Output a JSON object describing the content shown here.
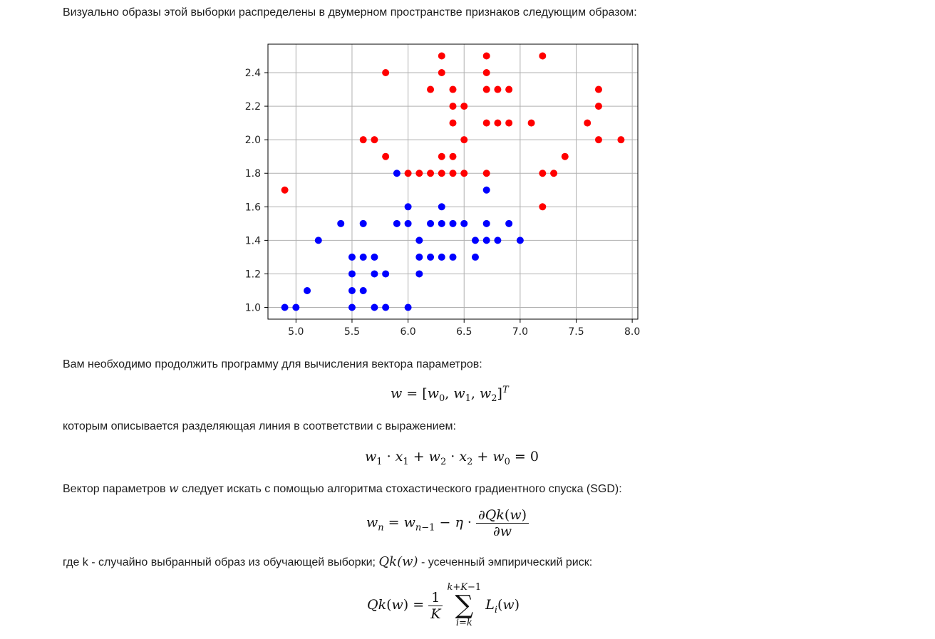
{
  "intro_text": "Визуально образы этой выборки распределены в двумерном пространстве признаков следующим образом:",
  "para2": "Вам необходимо продолжить программу для вычисления вектора параметров:",
  "para3": "которым описывается разделяющая линия в соответствии с выражением:",
  "para4": {
    "before": "Вектор параметров",
    "var": "w",
    "after": "следует искать с помощью алгоритма стохастического градиентного спуска (SGD):"
  },
  "para5": {
    "before": "где k - случайно выбранный образ из обучающей выборки;",
    "expr": "Qk(w)",
    "after": "- усеченный эмпирический риск:"
  },
  "colors": {
    "red": "#ff0000",
    "blue": "#0000ff",
    "grid": "#b0b0b0"
  },
  "chart_data": {
    "type": "scatter",
    "xlim": [
      4.75,
      8.05
    ],
    "ylim": [
      0.93,
      2.57
    ],
    "xticks": [
      5.0,
      5.5,
      6.0,
      6.5,
      7.0,
      7.5,
      8.0
    ],
    "yticks": [
      1.0,
      1.2,
      1.4,
      1.6,
      1.8,
      2.0,
      2.2,
      2.4
    ],
    "xtick_labels": [
      "5.0",
      "5.5",
      "6.0",
      "6.5",
      "7.0",
      "7.5",
      "8.0"
    ],
    "ytick_labels": [
      "1.0",
      "1.2",
      "1.4",
      "1.6",
      "1.8",
      "2.0",
      "2.2",
      "2.4"
    ],
    "grid": true,
    "series": [
      {
        "color": "#ff0000",
        "points": [
          [
            4.9,
            1.7
          ],
          [
            5.6,
            2.0
          ],
          [
            5.7,
            2.0
          ],
          [
            5.8,
            2.4
          ],
          [
            5.8,
            1.9
          ],
          [
            6.0,
            1.8
          ],
          [
            6.1,
            1.8
          ],
          [
            6.2,
            1.8
          ],
          [
            6.2,
            2.3
          ],
          [
            6.3,
            2.5
          ],
          [
            6.3,
            2.4
          ],
          [
            6.3,
            1.9
          ],
          [
            6.3,
            1.8
          ],
          [
            6.4,
            2.3
          ],
          [
            6.4,
            2.2
          ],
          [
            6.4,
            2.1
          ],
          [
            6.4,
            1.9
          ],
          [
            6.4,
            1.8
          ],
          [
            6.5,
            2.2
          ],
          [
            6.5,
            2.0
          ],
          [
            6.5,
            1.8
          ],
          [
            6.7,
            2.5
          ],
          [
            6.7,
            2.4
          ],
          [
            6.7,
            2.3
          ],
          [
            6.7,
            2.1
          ],
          [
            6.7,
            1.8
          ],
          [
            6.8,
            2.3
          ],
          [
            6.8,
            2.1
          ],
          [
            6.9,
            2.3
          ],
          [
            6.9,
            2.1
          ],
          [
            7.1,
            2.1
          ],
          [
            7.2,
            2.5
          ],
          [
            7.2,
            1.8
          ],
          [
            7.2,
            1.6
          ],
          [
            7.3,
            1.8
          ],
          [
            7.4,
            1.9
          ],
          [
            7.6,
            2.1
          ],
          [
            7.7,
            2.3
          ],
          [
            7.7,
            2.2
          ],
          [
            7.7,
            2.0
          ],
          [
            7.9,
            2.0
          ]
        ]
      },
      {
        "color": "#0000ff",
        "points": [
          [
            4.9,
            1.0
          ],
          [
            5.0,
            1.0
          ],
          [
            5.1,
            1.1
          ],
          [
            5.2,
            1.4
          ],
          [
            5.4,
            1.5
          ],
          [
            5.5,
            1.3
          ],
          [
            5.5,
            1.2
          ],
          [
            5.5,
            1.1
          ],
          [
            5.5,
            1.0
          ],
          [
            5.6,
            1.5
          ],
          [
            5.6,
            1.3
          ],
          [
            5.6,
            1.1
          ],
          [
            5.7,
            1.3
          ],
          [
            5.7,
            1.2
          ],
          [
            5.7,
            1.0
          ],
          [
            5.8,
            1.2
          ],
          [
            5.8,
            1.0
          ],
          [
            5.9,
            1.8
          ],
          [
            5.9,
            1.5
          ],
          [
            6.0,
            1.6
          ],
          [
            6.0,
            1.5
          ],
          [
            6.0,
            1.0
          ],
          [
            6.1,
            1.4
          ],
          [
            6.1,
            1.3
          ],
          [
            6.1,
            1.2
          ],
          [
            6.2,
            1.5
          ],
          [
            6.2,
            1.3
          ],
          [
            6.3,
            1.6
          ],
          [
            6.3,
            1.5
          ],
          [
            6.3,
            1.3
          ],
          [
            6.4,
            1.5
          ],
          [
            6.4,
            1.3
          ],
          [
            6.5,
            1.5
          ],
          [
            6.6,
            1.4
          ],
          [
            6.6,
            1.3
          ],
          [
            6.7,
            1.7
          ],
          [
            6.7,
            1.5
          ],
          [
            6.7,
            1.4
          ],
          [
            6.8,
            1.4
          ],
          [
            6.9,
            1.5
          ],
          [
            7.0,
            1.4
          ]
        ]
      }
    ]
  }
}
